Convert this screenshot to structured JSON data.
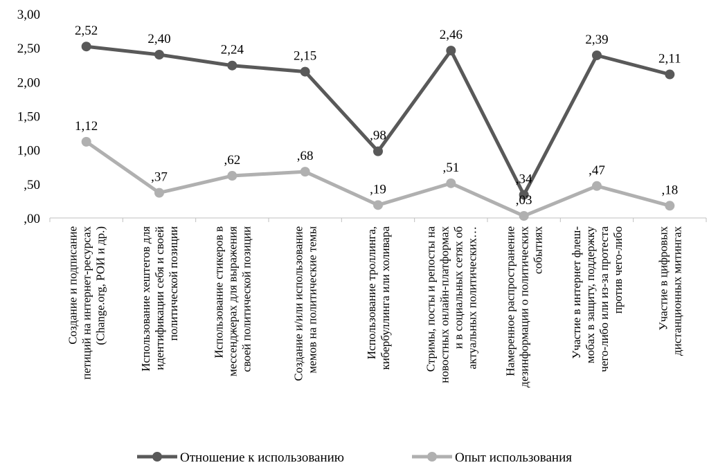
{
  "chart_data": {
    "type": "line",
    "title": "",
    "xlabel": "",
    "ylabel": "",
    "ylim": [
      0,
      3
    ],
    "yticks": [
      0,
      0.5,
      1,
      1.5,
      2,
      2.5,
      3
    ],
    "ytick_labels": [
      ",00",
      ",50",
      "1,00",
      "1,50",
      "2,00",
      "2,50",
      "3,00"
    ],
    "grid": false,
    "legend_position": "bottom",
    "categories": [
      [
        "Создание и подписание",
        "петиций на интернет-ресурсах",
        "(Change.org, РОИ и др.)"
      ],
      [
        "Использование хештегов для",
        "идентификации себя и своей",
        "политической позиции"
      ],
      [
        "Использование стикеров в",
        "мессенджерах для выражения",
        "своей политической позиции"
      ],
      [
        "Создание и/или использование",
        "мемов на политические темы"
      ],
      [
        "Использование троллинга,",
        "кибербуллинга или холивара"
      ],
      [
        "Стримы, посты и репосты на",
        "новостных онлайн-платформах",
        "и в социальных сетях об",
        "актуальных политических…"
      ],
      [
        "Намеренное распространение",
        "дезинформации о политических",
        "событиях"
      ],
      [
        "Участие в интернет флеш-",
        "мобах в защиту, поддержку",
        "чего-либо или из-за протеста",
        "против чего-либо"
      ],
      [
        "Участие в цифровых",
        "дистанционных митингах"
      ]
    ],
    "series": [
      {
        "name": "Отношение к использованию",
        "color": "#595959",
        "values": [
          2.52,
          2.4,
          2.24,
          2.15,
          0.98,
          2.46,
          0.34,
          2.39,
          2.11
        ],
        "labels": [
          "2,52",
          "2,40",
          "2,24",
          "2,15",
          ",98",
          "2,46",
          ",34",
          "2,39",
          "2,11"
        ]
      },
      {
        "name": "Опыт использования",
        "color": "#b0b0b0",
        "values": [
          1.12,
          0.37,
          0.62,
          0.68,
          0.19,
          0.51,
          0.03,
          0.47,
          0.18
        ],
        "labels": [
          "1,12",
          ",37",
          ",62",
          ",68",
          ",19",
          ",51",
          ",03",
          ",47",
          ",18"
        ]
      }
    ]
  }
}
